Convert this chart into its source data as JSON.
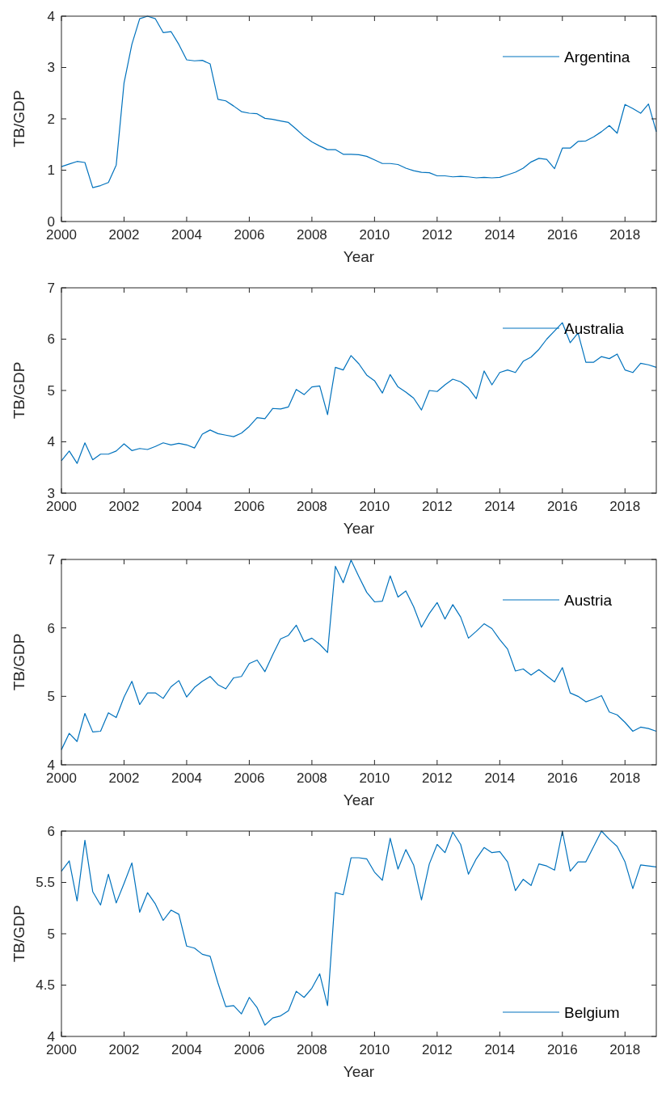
{
  "chart_data": [
    {
      "type": "line",
      "xlabel": "Year",
      "ylabel": "TB/GDP",
      "xlim": [
        2000,
        2019
      ],
      "xticks": [
        2000,
        2002,
        2004,
        2006,
        2008,
        2010,
        2012,
        2014,
        2016,
        2018
      ],
      "ylim": [
        0,
        4
      ],
      "yticks": [
        0,
        1,
        2,
        3,
        4
      ],
      "legend": "top right",
      "x": [
        2000,
        2000.25,
        2000.5,
        2000.75,
        2001,
        2001.25,
        2001.5,
        2001.75,
        2002,
        2002.25,
        2002.5,
        2002.75,
        2003,
        2003.25,
        2003.5,
        2003.75,
        2004,
        2004.25,
        2004.5,
        2004.75,
        2005,
        2005.25,
        2005.5,
        2005.75,
        2006,
        2006.25,
        2006.5,
        2006.75,
        2007,
        2007.25,
        2007.5,
        2007.75,
        2008,
        2008.25,
        2008.5,
        2008.75,
        2009,
        2009.25,
        2009.5,
        2009.75,
        2010,
        2010.25,
        2010.5,
        2010.75,
        2011,
        2011.25,
        2011.5,
        2011.75,
        2012,
        2012.25,
        2012.5,
        2012.75,
        2013,
        2013.25,
        2013.5,
        2013.75,
        2014,
        2014.25,
        2014.5,
        2014.75,
        2015,
        2015.25,
        2015.5,
        2015.75,
        2016,
        2016.25,
        2016.5,
        2016.75,
        2017,
        2017.25,
        2017.5,
        2017.75,
        2018,
        2018.25,
        2018.5,
        2018.75,
        2019
      ],
      "series": [
        {
          "name": "Argentina",
          "color": "#0072bd",
          "values": [
            1.07,
            1.12,
            1.17,
            1.15,
            0.66,
            0.7,
            0.76,
            1.1,
            2.7,
            3.45,
            3.95,
            4.0,
            3.95,
            3.68,
            3.7,
            3.45,
            3.15,
            3.13,
            3.14,
            3.07,
            2.38,
            2.35,
            2.25,
            2.14,
            2.11,
            2.1,
            2.01,
            1.99,
            1.96,
            1.93,
            1.8,
            1.66,
            1.55,
            1.47,
            1.4,
            1.4,
            1.31,
            1.31,
            1.3,
            1.27,
            1.2,
            1.13,
            1.13,
            1.11,
            1.04,
            0.99,
            0.96,
            0.95,
            0.89,
            0.89,
            0.87,
            0.88,
            0.87,
            0.85,
            0.86,
            0.85,
            0.86,
            0.91,
            0.96,
            1.04,
            1.16,
            1.23,
            1.21,
            1.03,
            1.43,
            1.43,
            1.56,
            1.57,
            1.65,
            1.75,
            1.87,
            1.72,
            2.28,
            2.2,
            2.11,
            2.29,
            1.75
          ]
        }
      ]
    },
    {
      "type": "line",
      "xlabel": "Year",
      "ylabel": "TB/GDP",
      "xlim": [
        2000,
        2019
      ],
      "xticks": [
        2000,
        2002,
        2004,
        2006,
        2008,
        2010,
        2012,
        2014,
        2016,
        2018
      ],
      "ylim": [
        3,
        7
      ],
      "yticks": [
        3,
        4,
        5,
        6,
        7
      ],
      "legend": "top right",
      "x": [
        2000,
        2000.25,
        2000.5,
        2000.75,
        2001,
        2001.25,
        2001.5,
        2001.75,
        2002,
        2002.25,
        2002.5,
        2002.75,
        2003,
        2003.25,
        2003.5,
        2003.75,
        2004,
        2004.25,
        2004.5,
        2004.75,
        2005,
        2005.25,
        2005.5,
        2005.75,
        2006,
        2006.25,
        2006.5,
        2006.75,
        2007,
        2007.25,
        2007.5,
        2007.75,
        2008,
        2008.25,
        2008.5,
        2008.75,
        2009,
        2009.25,
        2009.5,
        2009.75,
        2010,
        2010.25,
        2010.5,
        2010.75,
        2011,
        2011.25,
        2011.5,
        2011.75,
        2012,
        2012.25,
        2012.5,
        2012.75,
        2013,
        2013.25,
        2013.5,
        2013.75,
        2014,
        2014.25,
        2014.5,
        2014.75,
        2015,
        2015.25,
        2015.5,
        2015.75,
        2016,
        2016.25,
        2016.5,
        2016.75,
        2017,
        2017.25,
        2017.5,
        2017.75,
        2018,
        2018.25,
        2018.5,
        2018.75,
        2019
      ],
      "series": [
        {
          "name": "Australia",
          "color": "#0072bd",
          "values": [
            3.63,
            3.82,
            3.58,
            3.98,
            3.65,
            3.76,
            3.76,
            3.82,
            3.96,
            3.83,
            3.87,
            3.85,
            3.91,
            3.98,
            3.94,
            3.97,
            3.94,
            3.88,
            4.15,
            4.23,
            4.16,
            4.13,
            4.1,
            4.17,
            4.3,
            4.47,
            4.45,
            4.65,
            4.64,
            4.68,
            5.02,
            4.92,
            5.07,
            5.09,
            4.53,
            5.45,
            5.4,
            5.68,
            5.52,
            5.3,
            5.19,
            4.95,
            5.31,
            5.07,
            4.97,
            4.85,
            4.62,
            5.0,
            4.98,
            5.11,
            5.22,
            5.17,
            5.05,
            4.84,
            5.38,
            5.11,
            5.35,
            5.4,
            5.35,
            5.57,
            5.65,
            5.8,
            6.0,
            6.16,
            6.32,
            5.93,
            6.12,
            5.55,
            5.55,
            5.66,
            5.62,
            5.71,
            5.4,
            5.35,
            5.53,
            5.5,
            5.45
          ]
        }
      ]
    },
    {
      "type": "line",
      "xlabel": "Year",
      "ylabel": "TB/GDP",
      "xlim": [
        2000,
        2019
      ],
      "xticks": [
        2000,
        2002,
        2004,
        2006,
        2008,
        2010,
        2012,
        2014,
        2016,
        2018
      ],
      "ylim": [
        4,
        7
      ],
      "yticks": [
        4,
        5,
        6,
        7
      ],
      "legend": "top right",
      "x": [
        2000,
        2000.25,
        2000.5,
        2000.75,
        2001,
        2001.25,
        2001.5,
        2001.75,
        2002,
        2002.25,
        2002.5,
        2002.75,
        2003,
        2003.25,
        2003.5,
        2003.75,
        2004,
        2004.25,
        2004.5,
        2004.75,
        2005,
        2005.25,
        2005.5,
        2005.75,
        2006,
        2006.25,
        2006.5,
        2006.75,
        2007,
        2007.25,
        2007.5,
        2007.75,
        2008,
        2008.25,
        2008.5,
        2008.75,
        2009,
        2009.25,
        2009.5,
        2009.75,
        2010,
        2010.25,
        2010.5,
        2010.75,
        2011,
        2011.25,
        2011.5,
        2011.75,
        2012,
        2012.25,
        2012.5,
        2012.75,
        2013,
        2013.25,
        2013.5,
        2013.75,
        2014,
        2014.25,
        2014.5,
        2014.75,
        2015,
        2015.25,
        2015.5,
        2015.75,
        2016,
        2016.25,
        2016.5,
        2016.75,
        2017,
        2017.25,
        2017.5,
        2017.75,
        2018,
        2018.25,
        2018.5,
        2018.75,
        2019
      ],
      "series": [
        {
          "name": "Austria",
          "color": "#0072bd",
          "values": [
            4.22,
            4.46,
            4.34,
            4.75,
            4.48,
            4.49,
            4.76,
            4.69,
            4.99,
            5.22,
            4.88,
            5.05,
            5.05,
            4.97,
            5.14,
            5.23,
            4.99,
            5.13,
            5.22,
            5.29,
            5.17,
            5.11,
            5.27,
            5.29,
            5.48,
            5.53,
            5.36,
            5.61,
            5.84,
            5.89,
            6.04,
            5.8,
            5.85,
            5.76,
            5.64,
            6.9,
            6.66,
            6.99,
            6.75,
            6.52,
            6.38,
            6.39,
            6.76,
            6.45,
            6.54,
            6.31,
            6.01,
            6.21,
            6.37,
            6.13,
            6.34,
            6.16,
            5.85,
            5.95,
            6.06,
            5.99,
            5.83,
            5.69,
            5.37,
            5.4,
            5.31,
            5.39,
            5.3,
            5.21,
            5.42,
            5.05,
            5.0,
            4.92,
            4.96,
            5.01,
            4.77,
            4.73,
            4.62,
            4.49,
            4.55,
            4.53,
            4.49
          ]
        }
      ]
    },
    {
      "type": "line",
      "xlabel": "Year",
      "ylabel": "TB/GDP",
      "xlim": [
        2000,
        2019
      ],
      "xticks": [
        2000,
        2002,
        2004,
        2006,
        2008,
        2010,
        2012,
        2014,
        2016,
        2018
      ],
      "ylim": [
        4,
        6
      ],
      "yticks": [
        4,
        4.5,
        5,
        5.5,
        6
      ],
      "legend": "bottom right",
      "x": [
        2000,
        2000.25,
        2000.5,
        2000.75,
        2001,
        2001.25,
        2001.5,
        2001.75,
        2002,
        2002.25,
        2002.5,
        2002.75,
        2003,
        2003.25,
        2003.5,
        2003.75,
        2004,
        2004.25,
        2004.5,
        2004.75,
        2005,
        2005.25,
        2005.5,
        2005.75,
        2006,
        2006.25,
        2006.5,
        2006.75,
        2007,
        2007.25,
        2007.5,
        2007.75,
        2008,
        2008.25,
        2008.5,
        2008.75,
        2009,
        2009.25,
        2009.5,
        2009.75,
        2010,
        2010.25,
        2010.5,
        2010.75,
        2011,
        2011.25,
        2011.5,
        2011.75,
        2012,
        2012.25,
        2012.5,
        2012.75,
        2013,
        2013.25,
        2013.5,
        2013.75,
        2014,
        2014.25,
        2014.5,
        2014.75,
        2015,
        2015.25,
        2015.5,
        2015.75,
        2016,
        2016.25,
        2016.5,
        2016.75,
        2017,
        2017.25,
        2017.5,
        2017.75,
        2018,
        2018.25,
        2018.5,
        2018.75,
        2019
      ],
      "series": [
        {
          "name": "Belgium",
          "color": "#0072bd",
          "values": [
            5.61,
            5.71,
            5.32,
            5.91,
            5.41,
            5.28,
            5.58,
            5.3,
            5.49,
            5.69,
            5.21,
            5.4,
            5.29,
            5.13,
            5.23,
            5.19,
            4.88,
            4.86,
            4.8,
            4.78,
            4.52,
            4.29,
            4.3,
            4.22,
            4.38,
            4.28,
            4.11,
            4.18,
            4.2,
            4.25,
            4.44,
            4.38,
            4.47,
            4.61,
            4.3,
            5.4,
            5.38,
            5.74,
            5.74,
            5.73,
            5.6,
            5.52,
            5.93,
            5.63,
            5.82,
            5.67,
            5.33,
            5.68,
            5.87,
            5.79,
            5.99,
            5.87,
            5.58,
            5.73,
            5.84,
            5.79,
            5.8,
            5.7,
            5.42,
            5.53,
            5.47,
            5.68,
            5.66,
            5.62,
            6.0,
            5.61,
            5.7,
            5.7,
            5.85,
            6.0,
            5.92,
            5.85,
            5.7,
            5.44,
            5.67,
            5.66,
            5.65
          ]
        }
      ]
    }
  ]
}
